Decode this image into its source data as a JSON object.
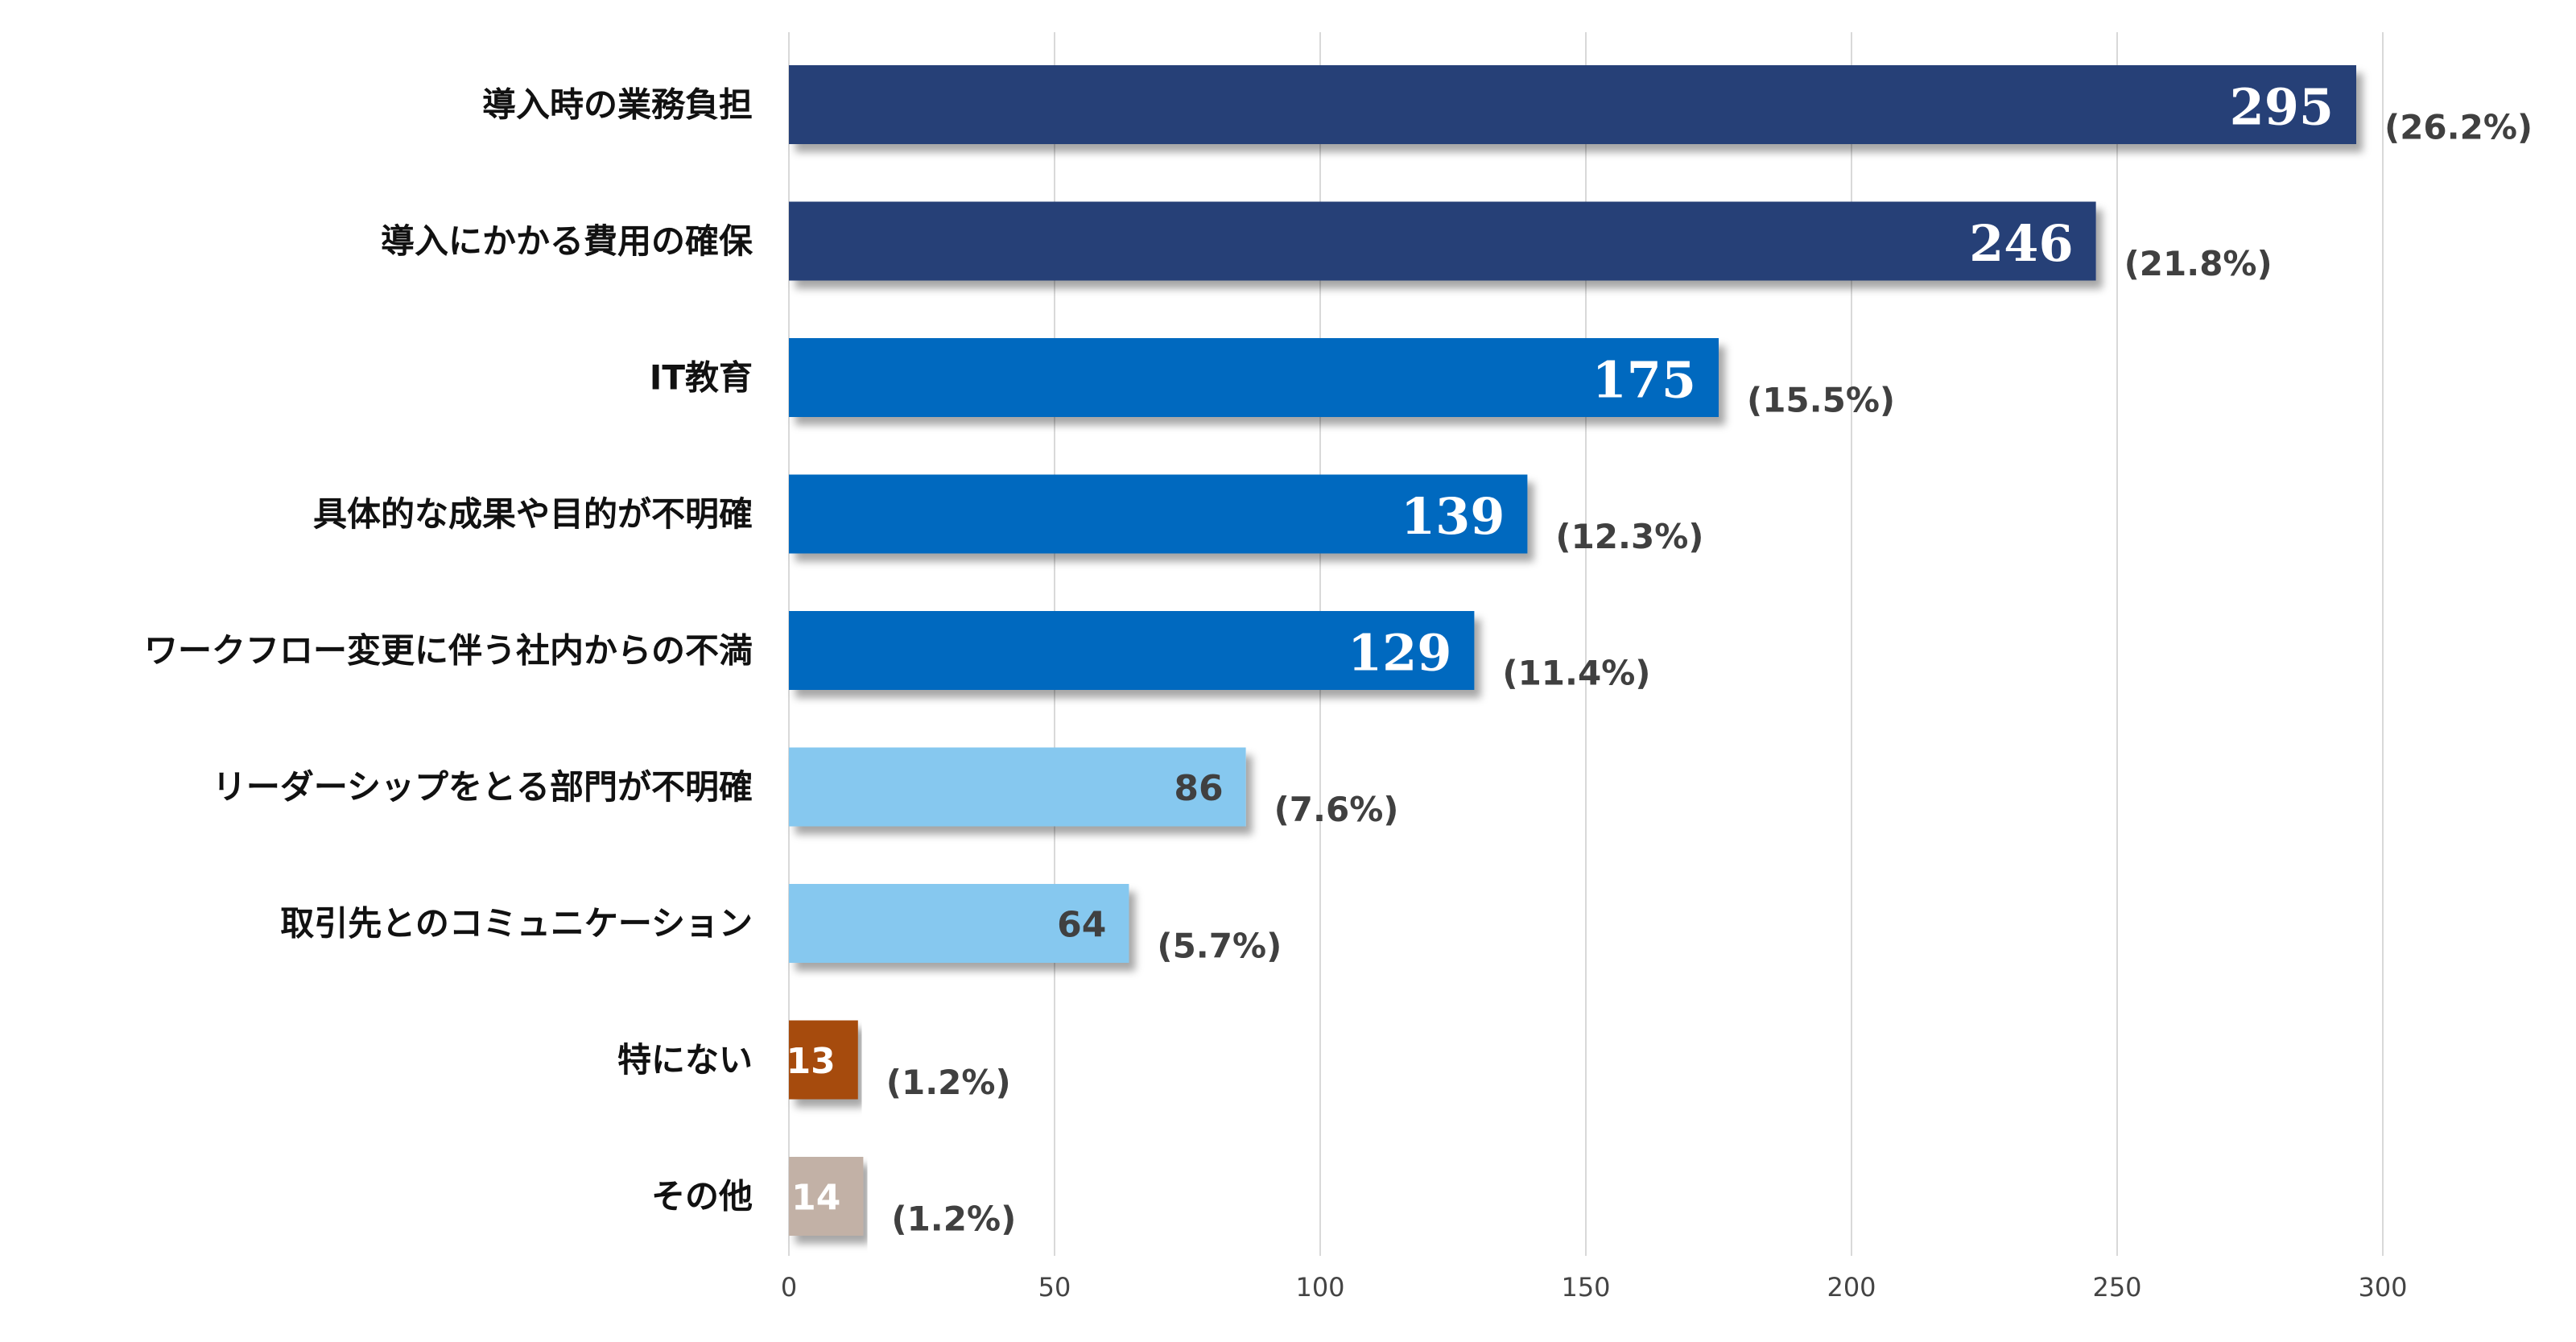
{
  "chart_data": {
    "type": "bar",
    "orientation": "horizontal",
    "title": "",
    "xlabel": "",
    "ylabel": "",
    "xlim": [
      0,
      300
    ],
    "xticks": [
      0,
      50,
      100,
      150,
      200,
      250,
      300
    ],
    "grid": true,
    "legend": "none",
    "categories": [
      "導入時の業務負担",
      "導入にかかる費用の確保",
      "IT教育",
      "具体的な成果や目的が不明確",
      "ワークフロー変更に伴う社内からの不満",
      "リーダーシップをとる部門が不明確",
      "取引先とのコミュニケーション",
      "特にない",
      "その他"
    ],
    "values": [
      295,
      246,
      175,
      139,
      129,
      86,
      64,
      13,
      14
    ],
    "percent_labels": [
      "(26.2%)",
      "(21.8%)",
      "(15.5%)",
      "(12.3%)",
      "(11.4%)",
      "(7.6%)",
      "(5.7%)",
      "(1.2%)",
      "(1.2%)"
    ],
    "bar_colors": [
      "#253f77",
      "#253f77",
      "#0569bf",
      "#0569bf",
      "#0569bf",
      "#86c8ef",
      "#86c8ef",
      "#a64c0d",
      "#c2b1a6"
    ],
    "value_label_colors": [
      "#ffffff",
      "#ffffff",
      "#ffffff",
      "#ffffff",
      "#ffffff",
      "#404040",
      "#404040",
      "#ffffff",
      "#ffffff"
    ],
    "value_label_styles": [
      "serif",
      "serif",
      "serif",
      "serif",
      "serif",
      "sans",
      "sans",
      "sans",
      "sans"
    ]
  }
}
